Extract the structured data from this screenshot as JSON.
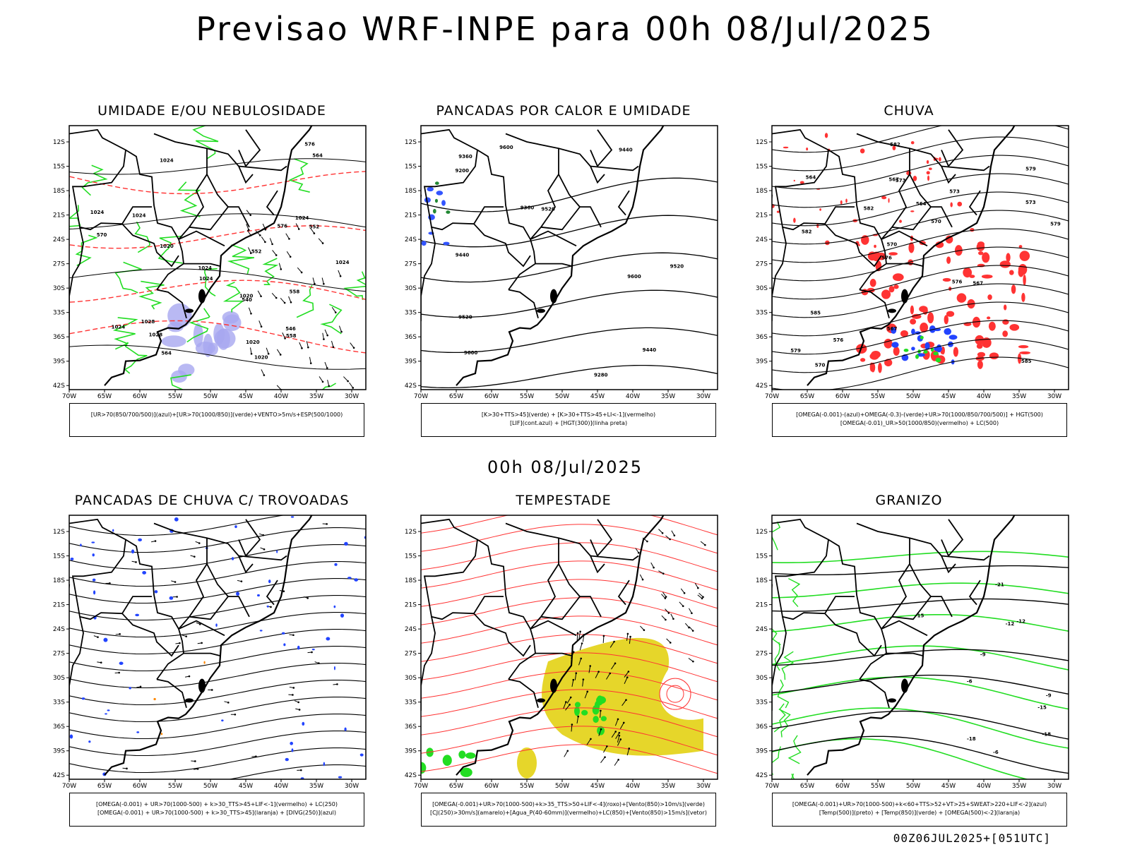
{
  "main_title": "Previsao WRF-INPE  para 00h 08/Jul/2025",
  "sub_title": "00h 08/Jul/2025",
  "footer": "00Z06JUL2025+[051UTC]",
  "axes": {
    "lat_labels": [
      "12S",
      "15S",
      "18S",
      "21S",
      "24S",
      "27S",
      "30S",
      "33S",
      "36S",
      "39S",
      "42S"
    ],
    "lon_labels": [
      "70W",
      "65W",
      "60W",
      "55W",
      "50W",
      "45W",
      "40W",
      "35W",
      "30W"
    ]
  },
  "panels": [
    {
      "title": "UMIDADE E/OU NEBULOSIDADE",
      "legend": [
        "[UR>70(850/700/500)](azul)+[UR>70(1000/850)](verde)+VENTO>5m/s+ESP(500/1000)"
      ]
    },
    {
      "title": "PANCADAS POR CALOR E UMIDADE",
      "legend": [
        "[K>30+TTS>45](verde) + [K>30+TTS>45+LI<-1](vermelho)",
        "[LIF](cont.azul) + [HGT(300)](linha preta)"
      ]
    },
    {
      "title": "CHUVA",
      "legend": [
        "[OMEGA(-0.001)-(azul)+OMEGA(-0.3)-(verde)+UR>70(1000/850/700/500)] + HGT(500)",
        "[OMEGA(-0.01)_UR>50(1000/850)(vermelho) + LC(500)"
      ]
    },
    {
      "title": "PANCADAS DE CHUVA C/ TROVOADAS",
      "legend": [
        "[OMEGA(-0.001) + UR>70(1000-500) + k>30_TTS>45+LIF<-1](vermelho) + LC(250)",
        "[OMEGA(-0.001) + UR>70(1000-500) + k>30_TTS>45](laranja) + [DIVG(250)](azul)"
      ]
    },
    {
      "title": "TEMPESTADE",
      "legend": [
        "[OMEGA(-0.001)+UR>70(1000-500)+k>35_TTS>50+LIF<-4](roxo)+[Vento(850)>10m/s](verde)",
        "[CJ(250)>30m/s](amarelo)+[Agua_P(40-60mm)](vermelho)+LC(850)+[Vento(850)>15m/s](vetor)"
      ]
    },
    {
      "title": "GRANIZO",
      "legend": [
        "[OMEGA(-0.001)+UR>70(1000-500)+k<60+TTS>52+VT>25+SWEAT>220+LIF<-2](azul)",
        "[Temp(500)](preto) + [Temp(850)](verde) + [OMEGA(500)<-2](laranja)"
      ]
    }
  ],
  "contour_labels": {
    "p1": [
      "1020",
      "1024",
      "1028",
      "1024",
      "1024",
      "1020",
      "1024",
      "1020",
      "1024",
      "1028",
      "1024",
      "1024",
      "1024",
      "1020",
      "576",
      "576",
      "570",
      "564",
      "558",
      "552",
      "546",
      "540",
      "564",
      "558",
      "552"
    ],
    "p2": [
      "9600",
      "9520",
      "9600",
      "9600",
      "9520",
      "9440",
      "9520",
      "9440",
      "9360",
      "9280",
      "9200",
      "9440",
      "9360"
    ],
    "p3": [
      "585",
      "582",
      "579",
      "576",
      "573",
      "570",
      "567",
      "564",
      "585",
      "582",
      "579",
      "576",
      "573",
      "570",
      "567",
      "564",
      "582",
      "579",
      "576",
      "573",
      "570",
      "567"
    ],
    "p6": [
      "-6",
      "-9",
      "-12",
      "-15",
      "-18",
      "-21",
      "-12",
      "-15",
      "-18",
      "-6",
      "-9"
    ]
  },
  "colors": {
    "blue": "#2244ff",
    "green": "#22dd22",
    "red": "#ff3333",
    "yellow": "#e6d62a",
    "lavender": "#a8a8f0",
    "orange": "#ff8800"
  }
}
